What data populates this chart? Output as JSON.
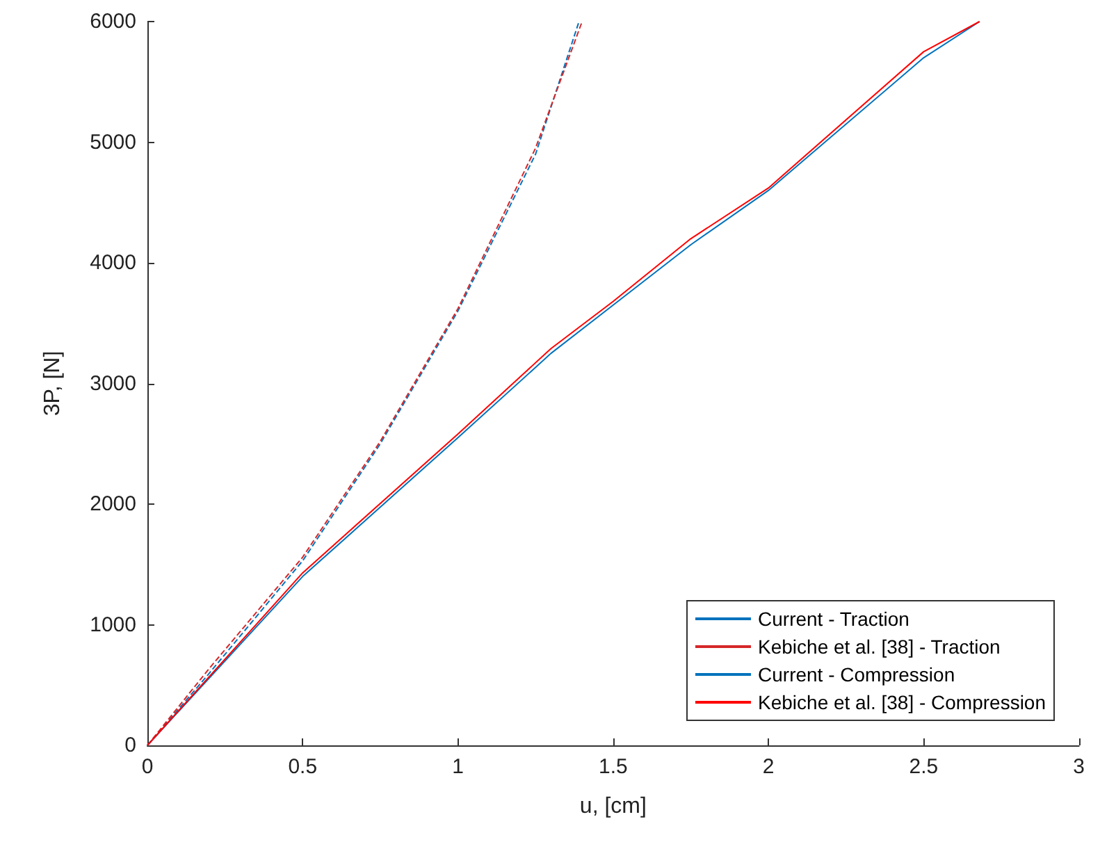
{
  "chart_data": {
    "type": "line",
    "xlabel": "u, [cm]",
    "ylabel": "3P, [N]",
    "xlim": [
      0,
      3
    ],
    "xticks": [
      0,
      0.5,
      1,
      1.5,
      2,
      2.5,
      3
    ],
    "ylim": [
      0,
      6000
    ],
    "yticks": [
      0,
      1000,
      2000,
      3000,
      4000,
      5000,
      6000
    ],
    "grid": false,
    "legend": "bottom right",
    "marker": "none",
    "series": [
      {
        "name": "Current - Traction",
        "color": "#0072bd",
        "line_style": "dashed",
        "x": [
          0,
          0.2,
          0.5,
          0.75,
          1,
          1.25,
          1.39
        ],
        "values": [
          0,
          600,
          1530,
          2500,
          3600,
          4900,
          6000
        ]
      },
      {
        "name": "Kebiche et al. [38] - Traction",
        "color": "#d62728",
        "line_style": "dashed",
        "x": [
          0,
          0.2,
          0.5,
          0.75,
          1,
          1.25,
          1.4
        ],
        "values": [
          0,
          640,
          1560,
          2520,
          3620,
          4950,
          6000
        ]
      },
      {
        "name": "Current - Compression",
        "color": "#0072bd",
        "line_style": "solid",
        "x": [
          0,
          0.5,
          1,
          1.3,
          1.5,
          1.75,
          2,
          2.5,
          2.68
        ],
        "values": [
          0,
          1400,
          2550,
          3250,
          3650,
          4150,
          4600,
          5700,
          6000
        ]
      },
      {
        "name": "Kebiche et al. [38] - Compression",
        "color": "#ff0000",
        "line_style": "solid",
        "x": [
          0,
          0.5,
          1,
          1.3,
          1.5,
          1.75,
          2,
          2.5,
          2.68
        ],
        "values": [
          0,
          1430,
          2580,
          3290,
          3680,
          4200,
          4620,
          5750,
          6000
        ]
      }
    ]
  }
}
